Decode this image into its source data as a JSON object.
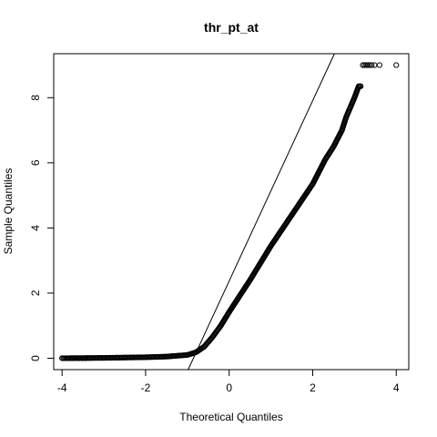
{
  "chart_data": {
    "type": "scatter",
    "subtype": "normal-qq-plot",
    "title": "thr_pt_at",
    "xlabel": "Theoretical Quantiles",
    "ylabel": "Sample Quantiles",
    "xlim": [
      -4.2,
      4.3
    ],
    "ylim": [
      -0.35,
      9.35
    ],
    "xticks": [
      -4,
      -2,
      0,
      2,
      4
    ],
    "yticks": [
      0,
      2,
      4,
      6,
      8
    ],
    "xtick_labels": [
      "-4",
      "-2",
      "0",
      "2",
      "4"
    ],
    "ytick_labels": [
      "0",
      "2",
      "4",
      "6",
      "8"
    ],
    "reference_line": {
      "slope": 2.77,
      "intercept": 2.37
    },
    "curve_knots": [
      [
        -4.0,
        0.0
      ],
      [
        -3.5,
        0.005
      ],
      [
        -3.0,
        0.01
      ],
      [
        -2.5,
        0.02
      ],
      [
        -2.0,
        0.03
      ],
      [
        -1.5,
        0.05
      ],
      [
        -1.0,
        0.1
      ],
      [
        -0.8,
        0.18
      ],
      [
        -0.6,
        0.35
      ],
      [
        -0.4,
        0.65
      ],
      [
        -0.2,
        1.0
      ],
      [
        0.0,
        1.42
      ],
      [
        0.5,
        2.4
      ],
      [
        1.0,
        3.45
      ],
      [
        1.5,
        4.4
      ],
      [
        2.0,
        5.35
      ],
      [
        2.3,
        6.1
      ],
      [
        2.5,
        6.5
      ],
      [
        2.7,
        7.0
      ],
      [
        2.8,
        7.4
      ],
      [
        2.9,
        7.7
      ],
      [
        3.0,
        8.0
      ],
      [
        3.1,
        8.35
      ],
      [
        3.15,
        8.35
      ]
    ],
    "extra_points": [
      [
        -3.88,
        0.0
      ],
      [
        -3.74,
        0.0
      ],
      [
        -3.6,
        0.0
      ],
      [
        -3.52,
        0.0
      ],
      [
        -3.45,
        0.0
      ],
      [
        3.2,
        9.0
      ],
      [
        3.24,
        9.0
      ],
      [
        3.28,
        9.0
      ],
      [
        3.32,
        9.0
      ],
      [
        3.36,
        9.0
      ],
      [
        3.41,
        9.0
      ],
      [
        3.48,
        9.0
      ],
      [
        3.6,
        9.0
      ],
      [
        4.0,
        9.0
      ]
    ]
  }
}
